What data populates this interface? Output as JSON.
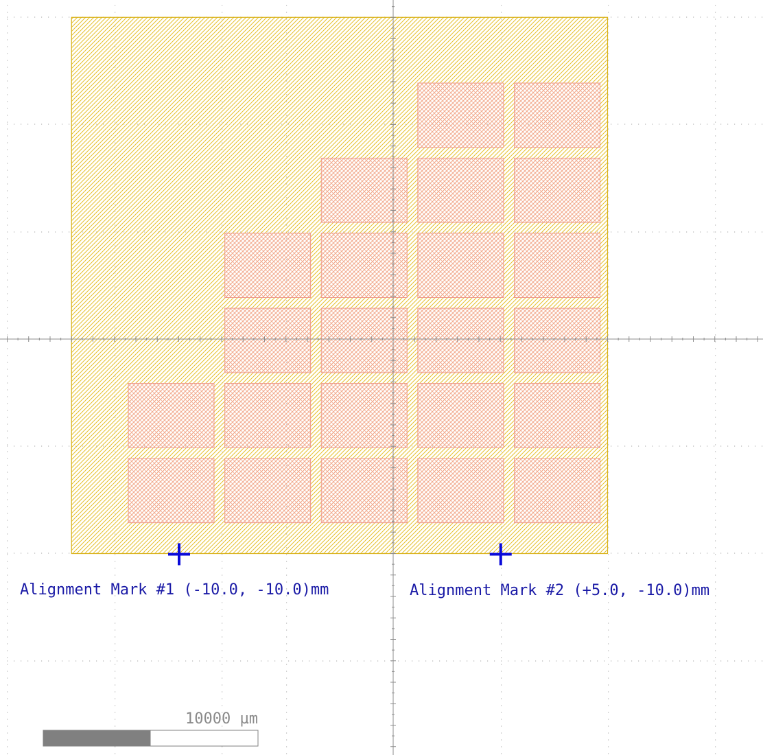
{
  "colors": {
    "background": "#ffffff",
    "grid_dot": "#b8b8b8",
    "axis": "#8c8c8c",
    "wafer_fill_hatch": "#e6c02a",
    "wafer_outline": "#d9b21a",
    "die_outline": "#ef9a8a",
    "die_hatch": "#f3a898",
    "mark": "#0a0ad9",
    "mark_label": "#1a1aa6",
    "scale_fill": "#808080",
    "scale_label": "#8a8a8a"
  },
  "units": "mm",
  "wafer": {
    "shape": "quarter-disc with cut edges",
    "radius_mm": 25,
    "arc_center_mm": [
      -15,
      -10
    ],
    "x_range_mm": [
      -15,
      10
    ],
    "y_range_mm": [
      -10,
      15
    ]
  },
  "dies": {
    "width_mm": 4.0,
    "height_mm": 3.0,
    "pitch_x_mm": 4.5,
    "pitch_y_mm": 3.5,
    "grid": [
      {
        "row": 0,
        "cols": [
          3,
          4
        ]
      },
      {
        "row": 1,
        "cols": [
          2,
          3,
          4
        ]
      },
      {
        "row": 2,
        "cols": [
          1,
          2,
          3,
          4
        ]
      },
      {
        "row": 3,
        "cols": [
          1,
          2,
          3,
          4
        ]
      },
      {
        "row": 4,
        "cols": [
          0,
          1,
          2,
          3,
          4
        ]
      },
      {
        "row": 5,
        "cols": [
          0,
          1,
          2,
          3,
          4
        ]
      }
    ]
  },
  "alignment_marks": [
    {
      "label": "Alignment Mark #1 (-10.0, -10.0)mm",
      "x_mm": -10.0,
      "y_mm": -10.0
    },
    {
      "label": "Alignment Mark #2 (+5.0, -10.0)mm",
      "x_mm": 5.0,
      "y_mm": -10.0
    }
  ],
  "scale_bar": {
    "label": "10000 µm",
    "length_um": 10000,
    "filled_fraction": 0.5
  }
}
